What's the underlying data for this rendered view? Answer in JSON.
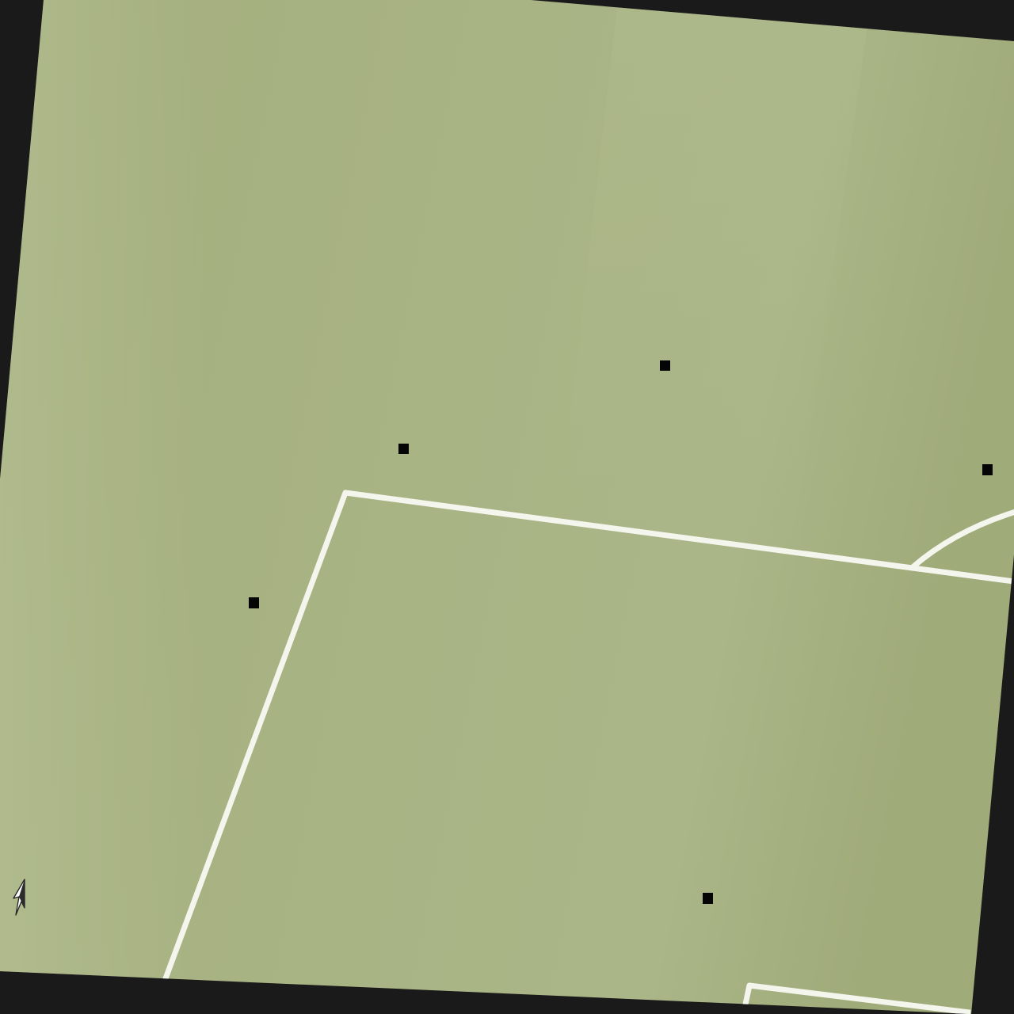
{
  "scene": {
    "background_color": "#1a1a1a",
    "turf_color": "#a4b07e",
    "turf_light_color": "#b4bf93",
    "line_color": "#f4f6ee",
    "marker_color": "#050505"
  },
  "markers": [
    {
      "name": "player-marker-1"
    },
    {
      "name": "player-marker-2"
    },
    {
      "name": "player-marker-3"
    },
    {
      "name": "player-marker-4"
    },
    {
      "name": "player-marker-5"
    }
  ],
  "cursor": {
    "icon": "mouse-pointer-icon"
  }
}
